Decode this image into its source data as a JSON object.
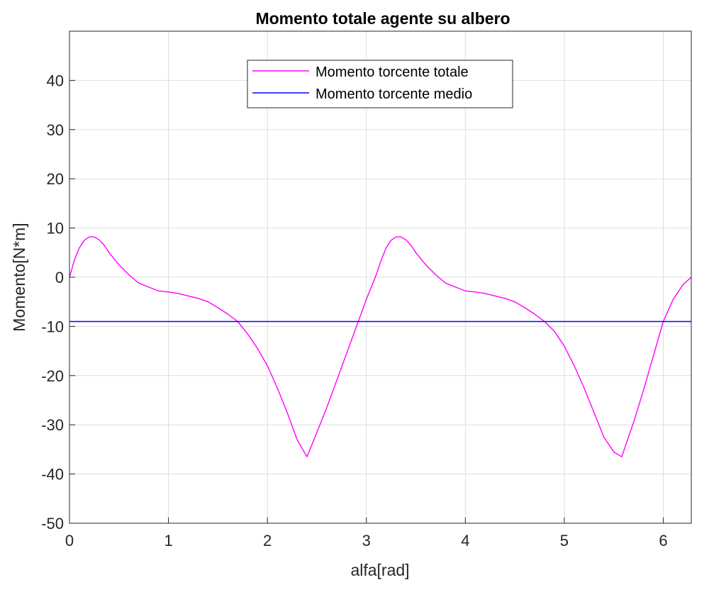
{
  "chart_data": {
    "type": "line",
    "title": "Momento totale agente su albero",
    "xlabel": "alfa[rad]",
    "ylabel": "Momento[N*m]",
    "xlim": [
      0,
      6.283
    ],
    "ylim": [
      -50,
      50
    ],
    "xticks": [
      0,
      1,
      2,
      3,
      4,
      5,
      6
    ],
    "yticks": [
      -50,
      -40,
      -30,
      -20,
      -10,
      0,
      10,
      20,
      30,
      40
    ],
    "grid": true,
    "legend_position": "top-center",
    "series": [
      {
        "name": "Momento torcente totale",
        "color": "#ff00ff",
        "x": [
          0,
          0.05,
          0.1,
          0.15,
          0.2,
          0.25,
          0.3,
          0.35,
          0.4,
          0.5,
          0.6,
          0.7,
          0.8,
          0.9,
          1.0,
          1.1,
          1.2,
          1.3,
          1.4,
          1.5,
          1.6,
          1.7,
          1.8,
          1.9,
          2.0,
          2.1,
          2.2,
          2.3,
          2.4,
          2.5,
          2.6,
          2.7,
          2.8,
          2.9,
          3.0,
          3.1,
          3.15,
          3.2,
          3.25,
          3.3,
          3.35,
          3.4,
          3.45,
          3.5,
          3.6,
          3.7,
          3.8,
          3.9,
          4.0,
          4.1,
          4.2,
          4.3,
          4.4,
          4.5,
          4.6,
          4.7,
          4.8,
          4.9,
          5.0,
          5.1,
          5.2,
          5.3,
          5.4,
          5.5,
          5.58,
          5.7,
          5.8,
          5.9,
          6.0,
          6.1,
          6.2,
          6.283
        ],
        "values": [
          0,
          3.5,
          6.0,
          7.5,
          8.2,
          8.2,
          7.6,
          6.5,
          5.0,
          2.5,
          0.5,
          -1.2,
          -2.0,
          -2.8,
          -3.0,
          -3.3,
          -3.8,
          -4.3,
          -5.0,
          -6.2,
          -7.5,
          -9.0,
          -11.5,
          -14.5,
          -18.0,
          -22.5,
          -27.5,
          -33.0,
          -36.5,
          -31.5,
          -26.5,
          -21.0,
          -15.5,
          -10.0,
          -4.5,
          0.5,
          3.5,
          6.0,
          7.5,
          8.2,
          8.2,
          7.6,
          6.5,
          5.0,
          2.5,
          0.5,
          -1.2,
          -2.0,
          -2.8,
          -3.0,
          -3.3,
          -3.8,
          -4.3,
          -5.0,
          -6.2,
          -7.5,
          -9.0,
          -11.0,
          -14.0,
          -18.0,
          -22.5,
          -27.5,
          -32.5,
          -35.5,
          -36.5,
          -29.5,
          -23.0,
          -16.0,
          -9.0,
          -4.5,
          -1.5,
          0
        ]
      },
      {
        "name": "Momento torcente medio",
        "color": "#0000ff",
        "x": [
          0,
          6.283
        ],
        "values": [
          -9,
          -9
        ]
      }
    ]
  }
}
